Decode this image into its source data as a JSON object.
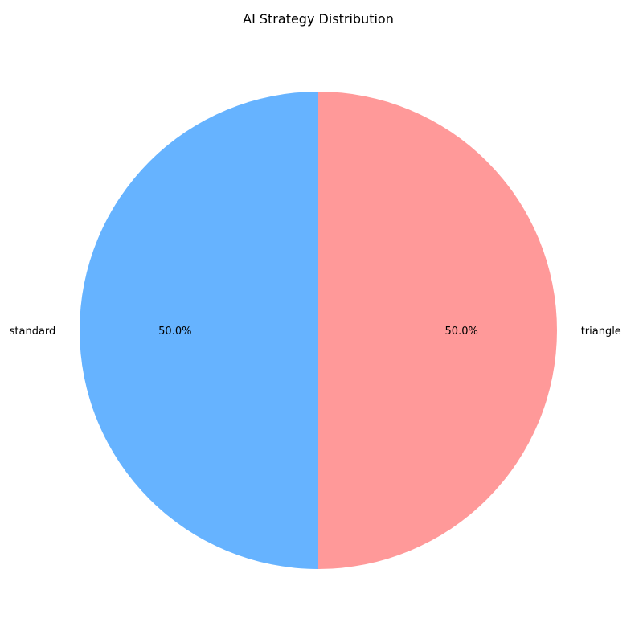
{
  "chart_data": {
    "type": "pie",
    "title": "AI Strategy Distribution",
    "slices": [
      {
        "label": "standard",
        "value": 50.0,
        "pct_label": "50.0%",
        "color": "#66b3ff"
      },
      {
        "label": "triangle",
        "value": 50.0,
        "pct_label": "50.0%",
        "color": "#ff9999"
      }
    ],
    "start_angle_deg": 90,
    "direction": "counterclockwise",
    "legend": "none"
  }
}
